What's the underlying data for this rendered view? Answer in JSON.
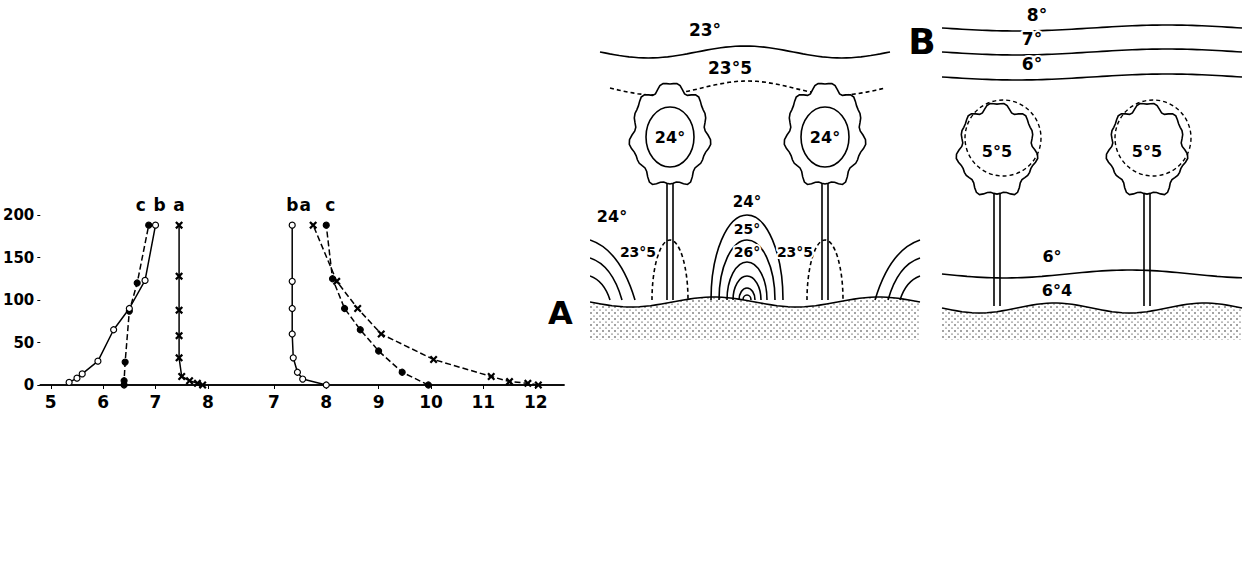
{
  "chart_data": {
    "type": "line",
    "title": "A",
    "xlim": [
      4.8,
      14.8
    ],
    "xticks": [
      5,
      6,
      7,
      8
    ],
    "x2lim": [
      2.54,
      12.54
    ],
    "x2ticks": [
      7,
      8,
      9,
      10,
      11,
      12
    ],
    "ylim": [
      0,
      200
    ],
    "yticks": [
      0,
      50,
      100,
      150,
      200
    ],
    "grid": false,
    "series": [
      {
        "name": "c",
        "color": "#000000",
        "marker": "filled_circle",
        "line_style": "dashed",
        "values": [
          [
            6.4,
            0
          ],
          [
            6.4,
            5
          ],
          [
            6.42,
            27
          ],
          [
            6.5,
            87
          ],
          [
            6.65,
            120
          ],
          [
            6.87,
            188
          ]
        ]
      },
      {
        "name": "b",
        "color": "#000000",
        "marker": "open_circle",
        "line_style": "solid",
        "values": [
          [
            5.35,
            3
          ],
          [
            5.5,
            8
          ],
          [
            5.6,
            13
          ],
          [
            5.9,
            28
          ],
          [
            6.2,
            65
          ],
          [
            6.5,
            90
          ],
          [
            6.8,
            123
          ],
          [
            7.0,
            188
          ]
        ]
      },
      {
        "name": "a",
        "color": "#000000",
        "marker": "cross",
        "line_style": "solid",
        "values": [
          [
            7.9,
            0
          ],
          [
            7.8,
            2
          ],
          [
            7.65,
            5
          ],
          [
            7.5,
            10
          ],
          [
            7.45,
            32
          ],
          [
            7.45,
            58
          ],
          [
            7.45,
            88
          ],
          [
            7.45,
            128
          ],
          [
            7.45,
            188
          ]
        ]
      },
      {
        "name": "b",
        "color": "#000000",
        "marker": "open_circle",
        "line_style": "solid",
        "axis": "x2",
        "values": [
          [
            8.0,
            0
          ],
          [
            7.55,
            7
          ],
          [
            7.45,
            15
          ],
          [
            7.37,
            32
          ],
          [
            7.35,
            60
          ],
          [
            7.35,
            90
          ],
          [
            7.35,
            122
          ],
          [
            7.35,
            188
          ]
        ]
      },
      {
        "name": "a",
        "color": "#000000",
        "marker": "cross",
        "line_style": "dashed",
        "axis": "x2",
        "values": [
          [
            12.05,
            0
          ],
          [
            11.85,
            2
          ],
          [
            11.5,
            4
          ],
          [
            11.15,
            10
          ],
          [
            10.05,
            30
          ],
          [
            9.05,
            60
          ],
          [
            8.6,
            90
          ],
          [
            8.2,
            122
          ],
          [
            7.75,
            188
          ]
        ]
      },
      {
        "name": "c",
        "color": "#000000",
        "marker": "filled_circle",
        "line_style": "dashed",
        "axis": "x2",
        "values": [
          [
            9.95,
            0
          ],
          [
            9.45,
            15
          ],
          [
            9.0,
            40
          ],
          [
            8.65,
            65
          ],
          [
            8.35,
            90
          ],
          [
            8.12,
            125
          ],
          [
            8.0,
            188
          ]
        ]
      }
    ]
  },
  "diagram": {
    "label": "B",
    "scenes": [
      {
        "isotherms": [
          "23°",
          "23°5"
        ],
        "canopy": [
          "24°",
          "24°"
        ],
        "ground": [
          "24°",
          "23°5",
          "24°",
          "25°",
          "26°",
          "23°5"
        ]
      },
      {
        "isotherms": [
          "8°",
          "7°",
          "6°"
        ],
        "canopy": [
          "5°5",
          "5°5"
        ],
        "ground": [
          "6°",
          "6°4"
        ]
      }
    ]
  }
}
